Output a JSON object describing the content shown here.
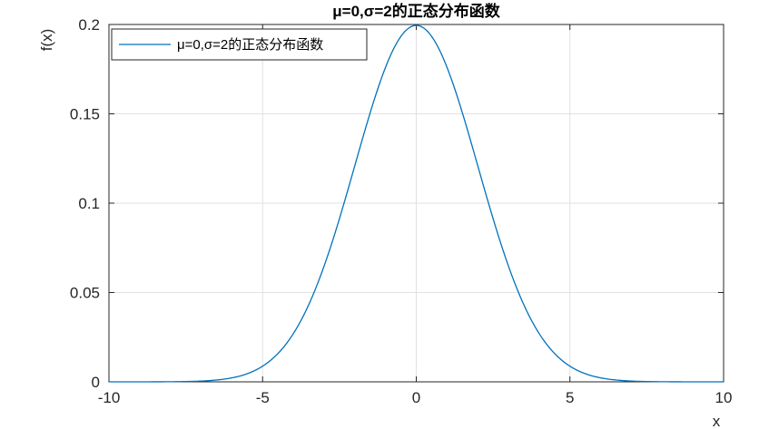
{
  "chart_data": {
    "type": "line",
    "title": "μ=0,σ=2的正态分布函数",
    "xlabel": "x",
    "ylabel": "f(x)",
    "xlim": [
      -10,
      10
    ],
    "ylim": [
      0,
      0.2
    ],
    "xticks": [
      -10,
      -5,
      0,
      5,
      10
    ],
    "xtick_labels": [
      "-10",
      "-5",
      "0",
      "5",
      "10"
    ],
    "yticks": [
      0,
      0.05,
      0.1,
      0.15,
      0.2
    ],
    "ytick_labels": [
      "0",
      "0.05",
      "0.1",
      "0.15",
      "0.2"
    ],
    "grid": true,
    "legend_position": "top-left",
    "series": [
      {
        "name": "μ=0,σ=2的正态分布函数",
        "color": "#0072BD",
        "function": "normal_pdf",
        "mu": 0,
        "sigma": 2
      }
    ],
    "colors": {
      "axes": "#262626",
      "grid": "#e1e1e1",
      "background": "#ffffff"
    }
  }
}
